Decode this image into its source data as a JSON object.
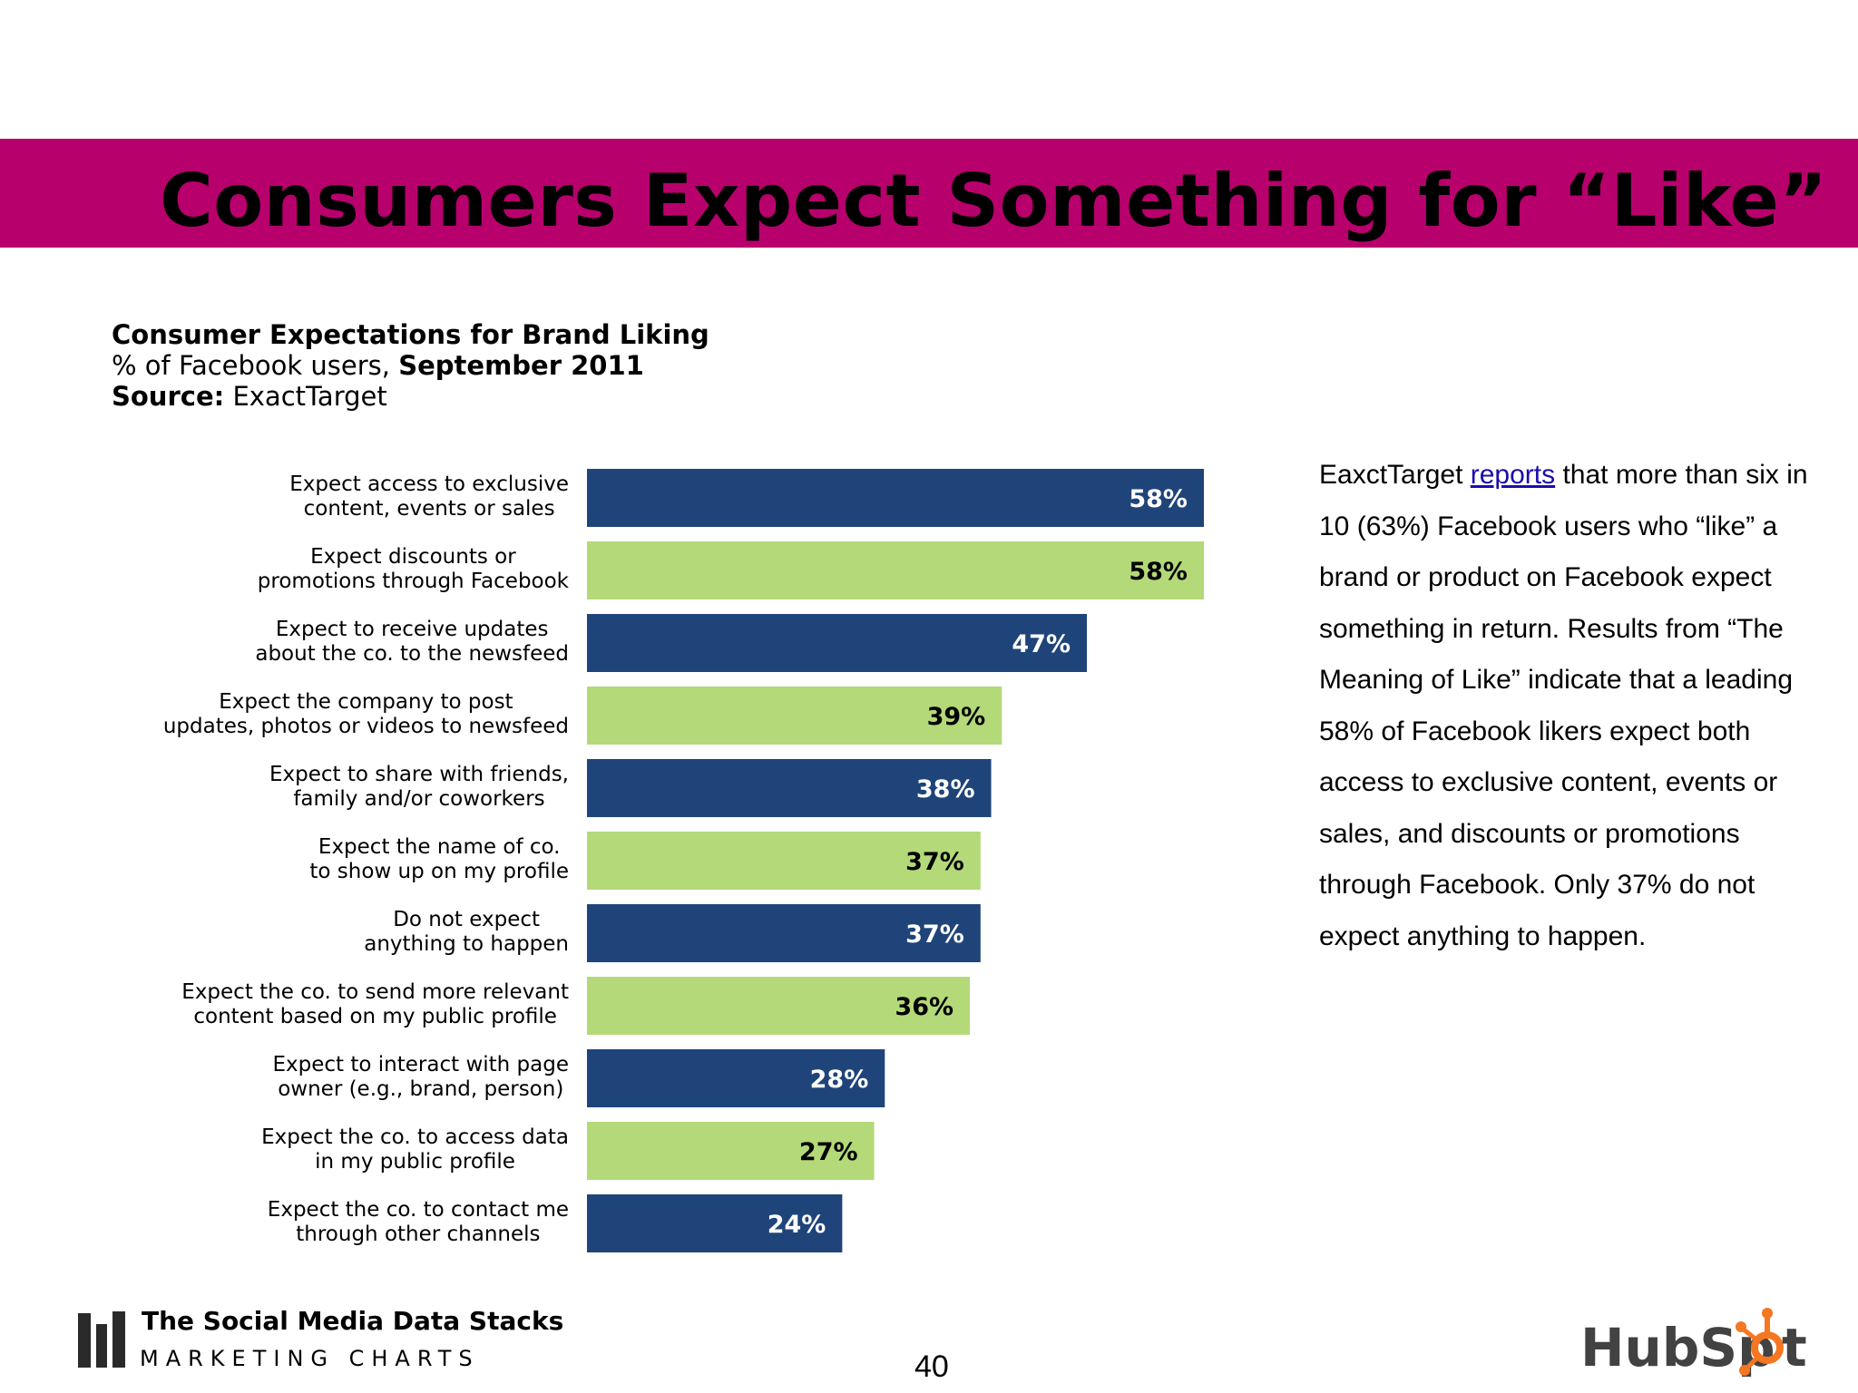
{
  "slide": {
    "title": "Consumers Expect Something for “Like”",
    "title_band_color": "#b8006d",
    "page_number": "40"
  },
  "chart_header": {
    "title": "Consumer Expectations for Brand Liking",
    "subtitle_prefix": "% of Facebook users,",
    "subtitle_date": "September 2011",
    "source_label": "Source:",
    "source_value": "ExactTarget"
  },
  "chart_data": {
    "type": "bar",
    "orientation": "horizontal",
    "categories": [
      [
        "Expect access to exclusive",
        "content, events or sales"
      ],
      [
        "Expect discounts or",
        "promotions through Facebook"
      ],
      [
        "Expect to receive updates",
        "about the co. to the newsfeed"
      ],
      [
        "Expect the company to post",
        "updates, photos or videos to newsfeed"
      ],
      [
        "Expect to share with friends,",
        "family and/or coworkers"
      ],
      [
        "Expect the name of co.",
        "to show up on my profile"
      ],
      [
        "Do not expect",
        "anything to happen"
      ],
      [
        "Expect the co. to send more relevant",
        "content based on my public profile"
      ],
      [
        "Expect to interact with page",
        "owner (e.g., brand, person)"
      ],
      [
        "Expect the co. to access data",
        "in my public profile"
      ],
      [
        "Expect the co. to contact me",
        "through other channels"
      ]
    ],
    "values": [
      58,
      58,
      47,
      39,
      38,
      37,
      37,
      36,
      28,
      27,
      24
    ],
    "value_labels": [
      "58%",
      "58%",
      "47%",
      "39%",
      "38%",
      "37%",
      "37%",
      "36%",
      "28%",
      "27%",
      "24%"
    ],
    "colors": [
      "#1f4479",
      "#b3d979"
    ],
    "value_label_colors": [
      "#ffffff",
      "#000000"
    ],
    "xlim": [
      0,
      58
    ],
    "grid": false,
    "legend": "none"
  },
  "body": {
    "text_before_link": "EaxctTarget ",
    "link_text": "reports",
    "text_after_link": " that more than six in 10 (63%) Facebook users who “like” a brand or product on Facebook expect something in return. Results from “The Meaning of Like” indicate that a leading 58% of Facebook likers expect both access to exclusive content, events or sales, and discounts or promotions through Facebook. Only 37% do not expect anything to happen."
  },
  "footer": {
    "brand_title": "The Social Media Data Stacks",
    "brand_subtitle": "MARKETING CHARTS",
    "logo_text": "HubSpot",
    "logo_color": "#f57722",
    "logo_text_color": "#424242",
    "brand_icon": "bar-stack-icon"
  }
}
